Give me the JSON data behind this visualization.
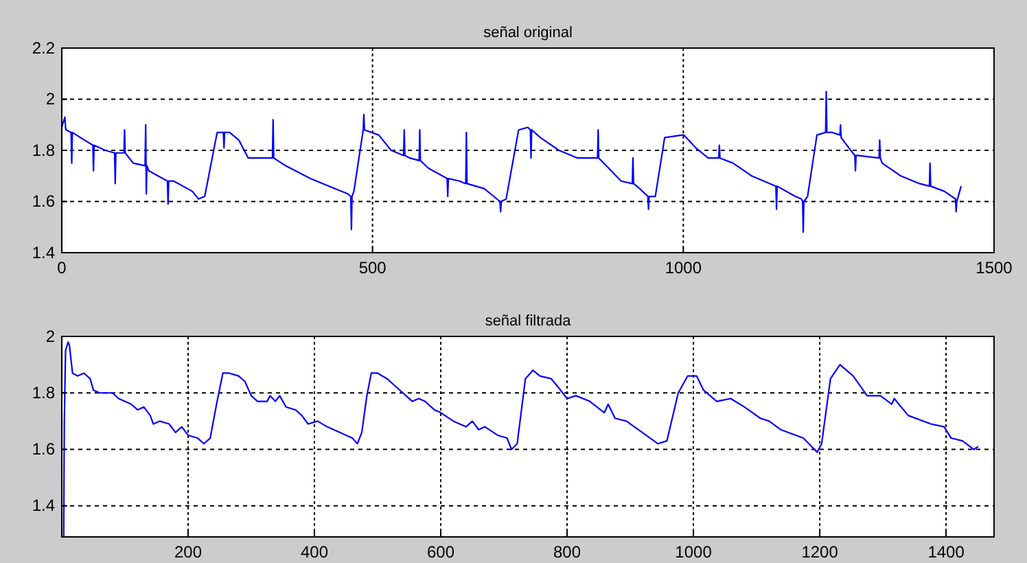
{
  "chart_data": [
    {
      "type": "line",
      "title": "señal original",
      "xlim": [
        0,
        1500
      ],
      "xticks": [
        0,
        500,
        1000,
        1500
      ],
      "ylim": [
        1.4,
        2.2
      ],
      "yticks": [
        1.4,
        1.6,
        1.8,
        2,
        2.2
      ],
      "grid": true,
      "line_style": "solid",
      "series": [
        {
          "color": "#0000ff",
          "x": [
            0,
            5,
            6,
            7,
            15,
            16,
            17,
            30,
            50,
            51,
            52,
            70,
            85,
            86,
            87,
            100,
            101,
            102,
            115,
            134,
            135,
            136,
            137,
            140,
            170,
            171,
            172,
            180,
            210,
            220,
            230,
            250,
            260,
            261,
            262,
            270,
            285,
            300,
            339,
            340,
            341,
            360,
            400,
            430,
            460,
            465,
            466,
            467,
            470,
            485,
            486,
            487,
            510,
            530,
            550,
            551,
            552,
            560,
            575,
            576,
            577,
            590,
            620,
            621,
            622,
            640,
            650,
            651,
            652,
            680,
            700,
            705,
            706,
            707,
            715,
            735,
            750,
            754,
            755,
            756,
            770,
            800,
            830,
            862,
            863,
            864,
            880,
            900,
            918,
            919,
            920,
            930,
            943,
            944,
            945,
            955,
            970,
            999,
            1000,
            1001,
            1020,
            1040,
            1057,
            1058,
            1059,
            1080,
            1110,
            1149,
            1150,
            1151,
            1180,
            1190,
            1192,
            1193,
            1194,
            1200,
            1215,
            1229,
            1230,
            1231,
            1240,
            1252,
            1253,
            1254,
            1260,
            1276,
            1277,
            1278,
            1280,
            1315,
            1316,
            1317,
            1320,
            1350,
            1380,
            1396,
            1397,
            1398,
            1420,
            1438,
            1439,
            1440,
            1447
          ],
          "values": [
            1.89,
            1.93,
            1.89,
            1.88,
            1.87,
            1.75,
            1.87,
            1.85,
            1.82,
            1.72,
            1.82,
            1.8,
            1.79,
            1.67,
            1.79,
            1.79,
            1.88,
            1.79,
            1.75,
            1.74,
            1.9,
            1.63,
            1.74,
            1.72,
            1.68,
            1.59,
            1.68,
            1.68,
            1.64,
            1.61,
            1.62,
            1.87,
            1.87,
            1.81,
            1.87,
            1.87,
            1.84,
            1.77,
            1.77,
            1.92,
            1.77,
            1.74,
            1.69,
            1.66,
            1.63,
            1.62,
            1.49,
            1.62,
            1.64,
            1.88,
            1.94,
            1.88,
            1.86,
            1.8,
            1.78,
            1.88,
            1.78,
            1.77,
            1.76,
            1.88,
            1.76,
            1.73,
            1.69,
            1.62,
            1.69,
            1.68,
            1.67,
            1.87,
            1.67,
            1.65,
            1.61,
            1.6,
            1.56,
            1.6,
            1.61,
            1.88,
            1.89,
            1.88,
            1.77,
            1.88,
            1.85,
            1.8,
            1.77,
            1.77,
            1.88,
            1.77,
            1.73,
            1.68,
            1.67,
            1.77,
            1.67,
            1.65,
            1.62,
            1.57,
            1.62,
            1.62,
            1.85,
            1.86,
            1.86,
            1.86,
            1.81,
            1.77,
            1.77,
            1.82,
            1.77,
            1.75,
            1.7,
            1.66,
            1.57,
            1.66,
            1.62,
            1.61,
            1.6,
            1.48,
            1.6,
            1.62,
            1.86,
            1.87,
            2.03,
            1.87,
            1.87,
            1.86,
            1.9,
            1.85,
            1.83,
            1.78,
            1.72,
            1.78,
            1.78,
            1.77,
            1.84,
            1.77,
            1.75,
            1.7,
            1.67,
            1.66,
            1.75,
            1.66,
            1.64,
            1.61,
            1.56,
            1.6,
            1.66
          ]
        }
      ]
    },
    {
      "type": "line",
      "title": "señal filtrada",
      "xlim": [
        0,
        1476
      ],
      "xticks": [
        200,
        400,
        600,
        800,
        1000,
        1200,
        1400
      ],
      "ylim": [
        1.29,
        2
      ],
      "yticks": [
        1.4,
        1.6,
        1.8,
        2
      ],
      "grid": true,
      "line_style": "solid",
      "series": [
        {
          "color": "#0000ff",
          "x": [
            3,
            4,
            6,
            10,
            12,
            17,
            25,
            35,
            45,
            50,
            60,
            80,
            90,
            110,
            120,
            130,
            140,
            145,
            155,
            170,
            180,
            190,
            200,
            215,
            225,
            235,
            245,
            255,
            265,
            280,
            290,
            300,
            310,
            325,
            330,
            338,
            345,
            355,
            370,
            380,
            390,
            405,
            420,
            440,
            460,
            468,
            475,
            483,
            490,
            500,
            515,
            530,
            545,
            555,
            565,
            575,
            590,
            600,
            620,
            640,
            650,
            660,
            670,
            690,
            705,
            712,
            721,
            734,
            746,
            757,
            775,
            786,
            800,
            814,
            836,
            859,
            865,
            876,
            894,
            919,
            944,
            958,
            976,
            991,
            1005,
            1016,
            1037,
            1059,
            1081,
            1106,
            1120,
            1138,
            1174,
            1196,
            1203,
            1217,
            1232,
            1253,
            1275,
            1296,
            1314,
            1318,
            1340,
            1376,
            1397,
            1408,
            1426,
            1444,
            1451
          ],
          "values": [
            1.29,
            1.7,
            1.95,
            1.98,
            1.97,
            1.87,
            1.86,
            1.87,
            1.85,
            1.81,
            1.8,
            1.8,
            1.78,
            1.76,
            1.74,
            1.75,
            1.72,
            1.69,
            1.7,
            1.69,
            1.66,
            1.68,
            1.65,
            1.64,
            1.62,
            1.64,
            1.76,
            1.87,
            1.87,
            1.86,
            1.84,
            1.79,
            1.77,
            1.77,
            1.79,
            1.77,
            1.79,
            1.75,
            1.74,
            1.72,
            1.69,
            1.7,
            1.68,
            1.66,
            1.64,
            1.62,
            1.66,
            1.79,
            1.87,
            1.87,
            1.85,
            1.82,
            1.79,
            1.77,
            1.78,
            1.77,
            1.74,
            1.73,
            1.7,
            1.68,
            1.7,
            1.67,
            1.68,
            1.65,
            1.64,
            1.6,
            1.62,
            1.85,
            1.88,
            1.86,
            1.85,
            1.82,
            1.78,
            1.79,
            1.77,
            1.73,
            1.76,
            1.71,
            1.7,
            1.66,
            1.62,
            1.63,
            1.8,
            1.86,
            1.86,
            1.81,
            1.77,
            1.78,
            1.75,
            1.71,
            1.7,
            1.67,
            1.64,
            1.59,
            1.62,
            1.85,
            1.9,
            1.86,
            1.79,
            1.79,
            1.76,
            1.78,
            1.72,
            1.69,
            1.68,
            1.64,
            1.63,
            1.6,
            1.61
          ]
        }
      ]
    }
  ]
}
